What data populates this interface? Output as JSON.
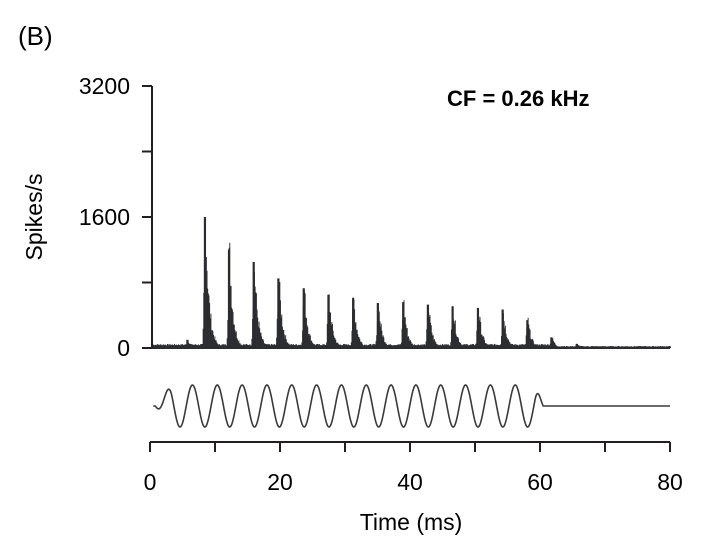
{
  "panel_label": "(B)",
  "chart_data": {
    "type": "histogram",
    "title": "CF = 0.26 kHz",
    "ylabel": "Spikes/s",
    "xlabel": "Time (ms)",
    "ylim": [
      0,
      3200
    ],
    "xlim": [
      0,
      80
    ],
    "yticks_labeled": [
      0,
      1600,
      3200
    ],
    "yticks_minor": [
      800,
      2400
    ],
    "xticks": [
      0,
      20,
      40,
      60,
      80
    ],
    "x_unit": "ms",
    "peaks": {
      "t_ms": [
        5.6,
        8.3,
        12.0,
        15.8,
        19.6,
        23.5,
        27.3,
        31.1,
        34.9,
        38.8,
        42.6,
        46.4,
        50.3,
        54.1,
        57.9,
        61.6,
        65.5
      ],
      "rate": [
        100,
        1600,
        1200,
        1050,
        850,
        730,
        650,
        610,
        550,
        560,
        530,
        510,
        490,
        470,
        340,
        130,
        50
      ]
    },
    "baseline_rate": 40,
    "stimulus": {
      "label": "",
      "start_ms": 0.8,
      "end_ms": 60.5,
      "period_ms": 3.82,
      "cycles_shown": 15
    },
    "grid": false,
    "legend": "none",
    "colors": {
      "bars": "#2b2c30",
      "axes": "#231f20",
      "stimulus": "#3a3a3a"
    }
  }
}
